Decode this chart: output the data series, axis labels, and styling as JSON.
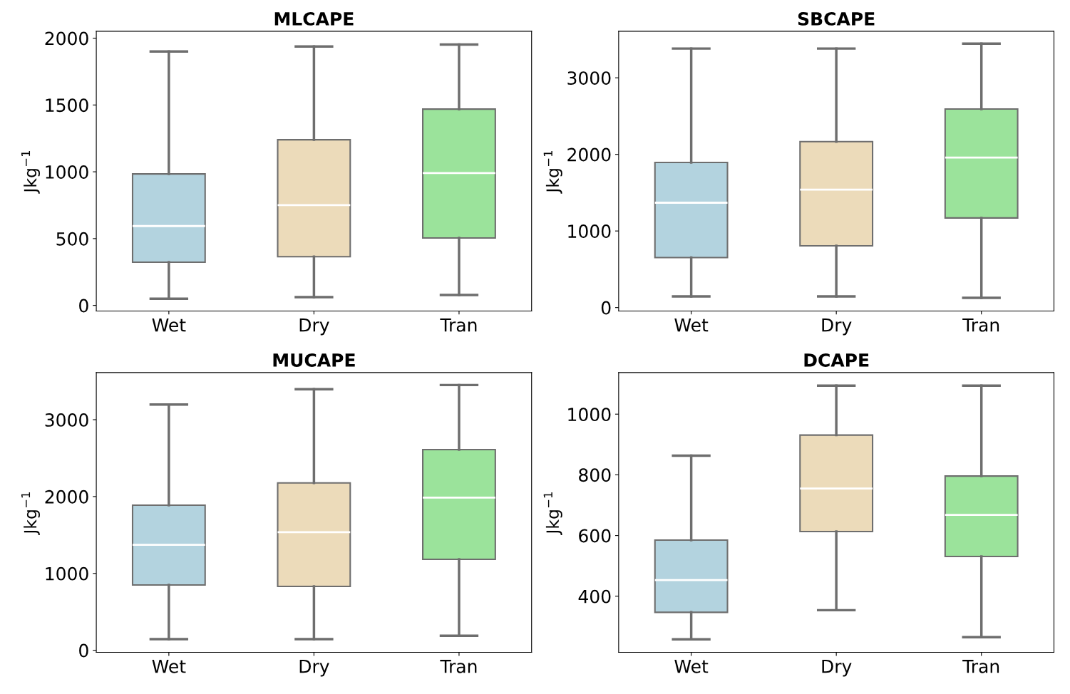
{
  "chart_data": [
    {
      "type": "box",
      "title": "MLCAPE",
      "ylabel": "Jkg$^{−1}$",
      "categories": [
        "Wet",
        "Dry",
        "Tran"
      ],
      "colors": [
        "#b3d3df",
        "#ecdbba",
        "#9be39b"
      ],
      "ylim": [
        -42,
        2052
      ],
      "yticks": [
        0,
        500,
        1000,
        1500,
        2000
      ],
      "grid": false,
      "boxes": [
        {
          "low": 50,
          "q1": 323,
          "median": 594,
          "q3": 984,
          "high": 1900
        },
        {
          "low": 62,
          "q1": 365,
          "median": 750,
          "q3": 1240,
          "high": 1938
        },
        {
          "low": 78,
          "q1": 505,
          "median": 990,
          "q3": 1469,
          "high": 1953
        }
      ]
    },
    {
      "type": "box",
      "title": "SBCAPE",
      "ylabel": "Jkg$^{−1}$",
      "categories": [
        "Wet",
        "Dry",
        "Tran"
      ],
      "colors": [
        "#b3d3df",
        "#ecdbba",
        "#9be39b"
      ],
      "ylim": [
        -45,
        3608
      ],
      "yticks": [
        0,
        1000,
        2000,
        3000
      ],
      "grid": false,
      "boxes": [
        {
          "low": 145,
          "q1": 653,
          "median": 1369,
          "q3": 1895,
          "high": 3382
        },
        {
          "low": 145,
          "q1": 807,
          "median": 1541,
          "q3": 2167,
          "high": 3382
        },
        {
          "low": 127,
          "q1": 1170,
          "median": 1958,
          "q3": 2593,
          "high": 3445
        }
      ]
    },
    {
      "type": "box",
      "title": "MUCAPE",
      "ylabel": "Jkg$^{−1}$",
      "categories": [
        "Wet",
        "Dry",
        "Tran"
      ],
      "colors": [
        "#b3d3df",
        "#ecdbba",
        "#9be39b"
      ],
      "ylim": [
        -27,
        3613
      ],
      "yticks": [
        0,
        1000,
        2000,
        3000
      ],
      "grid": false,
      "boxes": [
        {
          "low": 145,
          "q1": 849,
          "median": 1373,
          "q3": 1888,
          "high": 3198
        },
        {
          "low": 145,
          "q1": 831,
          "median": 1536,
          "q3": 2177,
          "high": 3397
        },
        {
          "low": 190,
          "q1": 1183,
          "median": 1987,
          "q3": 2611,
          "high": 3451
        }
      ]
    },
    {
      "type": "box",
      "title": "DCAPE",
      "ylabel": "Jkg$^{−1}$",
      "categories": [
        "Wet",
        "Dry",
        "Tran"
      ],
      "colors": [
        "#b3d3df",
        "#ecdbba",
        "#9be39b"
      ],
      "ylim": [
        215,
        1137
      ],
      "yticks": [
        400,
        600,
        800,
        1000
      ],
      "grid": false,
      "boxes": [
        {
          "low": 258,
          "q1": 347,
          "median": 453,
          "q3": 585,
          "high": 863
        },
        {
          "low": 354,
          "q1": 613,
          "median": 755,
          "q3": 931,
          "high": 1094
        },
        {
          "low": 265,
          "q1": 531,
          "median": 668,
          "q3": 796,
          "high": 1094
        }
      ]
    }
  ]
}
